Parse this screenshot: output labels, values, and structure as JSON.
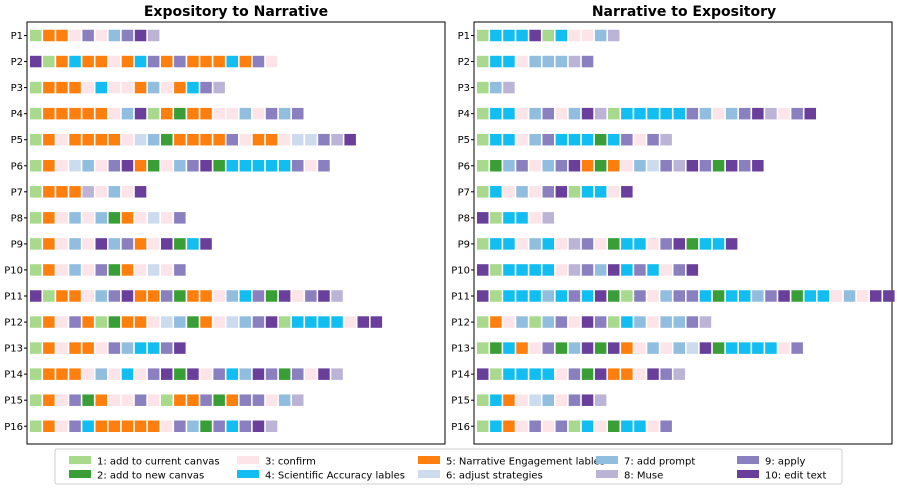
{
  "chart_data": {
    "type": "sequence-grid",
    "colors": {
      "1": "#a8d98c",
      "2": "#3a9e37",
      "3": "#fce4e8",
      "4": "#12bdf2",
      "5": "#ff7f0e",
      "6": "#ccdcee",
      "7": "#91bedf",
      "8": "#bcb4d6",
      "9": "#8a80bf",
      "10": "#6a3f9c"
    },
    "legend": [
      {
        "code": 1,
        "label": "1: add to current canvas"
      },
      {
        "code": 2,
        "label": "2: add to new canvas"
      },
      {
        "code": 3,
        "label": "3: confirm"
      },
      {
        "code": 4,
        "label": "4: Scientific Accuracy lables"
      },
      {
        "code": 5,
        "label": "5: Narrative Engagement lables"
      },
      {
        "code": 6,
        "label": "6: adjust strategies"
      },
      {
        "code": 7,
        "label": "7: add prompt"
      },
      {
        "code": 8,
        "label": "8: Muse"
      },
      {
        "code": 9,
        "label": "9: apply"
      },
      {
        "code": 10,
        "label": "10: edit text"
      }
    ],
    "panels": [
      {
        "title": "Expository to Narrative",
        "rows": [
          {
            "label": "P1",
            "seq": [
              1,
              5,
              5,
              3,
              9,
              3,
              7,
              9,
              10,
              8
            ]
          },
          {
            "label": "P2",
            "seq": [
              10,
              1,
              5,
              4,
              5,
              5,
              3,
              5,
              4,
              9,
              5,
              9,
              5,
              5,
              5,
              4,
              5,
              9,
              3
            ]
          },
          {
            "label": "P3",
            "seq": [
              1,
              5,
              5,
              5,
              3,
              4,
              3,
              3,
              5,
              7,
              3,
              5,
              4,
              9,
              8
            ]
          },
          {
            "label": "P4",
            "seq": [
              1,
              5,
              5,
              5,
              5,
              5,
              3,
              7,
              10,
              1,
              5,
              2,
              5,
              5,
              3,
              3,
              7,
              3,
              9,
              7,
              9
            ]
          },
          {
            "label": "P5",
            "seq": [
              1,
              5,
              3,
              5,
              5,
              5,
              5,
              3,
              6,
              7,
              2,
              5,
              5,
              5,
              5,
              9,
              3,
              5,
              5,
              3,
              6,
              6,
              9,
              8,
              10
            ]
          },
          {
            "label": "P6",
            "seq": [
              1,
              5,
              3,
              6,
              7,
              3,
              9,
              10,
              5,
              2,
              3,
              7,
              9,
              10,
              2,
              4,
              4,
              4,
              4,
              4,
              9,
              3,
              9
            ]
          },
          {
            "label": "P7",
            "seq": [
              1,
              5,
              5,
              5,
              8,
              3,
              7,
              3,
              10
            ]
          },
          {
            "label": "P8",
            "seq": [
              1,
              5,
              3,
              7,
              3,
              7,
              2,
              5,
              3,
              6,
              3,
              9
            ]
          },
          {
            "label": "P9",
            "seq": [
              1,
              5,
              3,
              7,
              3,
              10,
              7,
              9,
              5,
              3,
              10,
              2,
              4,
              10
            ]
          },
          {
            "label": "P10",
            "seq": [
              1,
              5,
              3,
              7,
              3,
              9,
              2,
              5,
              3,
              6,
              3,
              9
            ]
          },
          {
            "label": "P11",
            "seq": [
              10,
              1,
              5,
              5,
              3,
              7,
              9,
              10,
              5,
              5,
              9,
              2,
              5,
              5,
              3,
              7,
              4,
              9,
              2,
              10,
              3,
              9,
              10,
              8
            ]
          },
          {
            "label": "P12",
            "seq": [
              1,
              5,
              3,
              9,
              5,
              1,
              2,
              5,
              5,
              3,
              6,
              7,
              2,
              5,
              3,
              6,
              7,
              9,
              10,
              1,
              4,
              4,
              4,
              4,
              3,
              10,
              10
            ]
          },
          {
            "label": "P13",
            "seq": [
              1,
              5,
              3,
              5,
              5,
              3,
              9,
              7,
              4,
              4,
              9,
              10
            ]
          },
          {
            "label": "P14",
            "seq": [
              1,
              5,
              5,
              5,
              3,
              7,
              3,
              4,
              3,
              9,
              10,
              2,
              10,
              3,
              9,
              4,
              7,
              10,
              9,
              2,
              9,
              3,
              10,
              8
            ]
          },
          {
            "label": "P15",
            "seq": [
              1,
              5,
              3,
              9,
              2,
              5,
              3,
              3,
              9,
              3,
              1,
              5,
              5,
              9,
              2,
              5,
              9,
              9,
              3,
              7,
              8
            ]
          },
          {
            "label": "P16",
            "seq": [
              1,
              5,
              3,
              9,
              4,
              5,
              5,
              5,
              5,
              5,
              3,
              9,
              7,
              2,
              9,
              4,
              9,
              10,
              8
            ]
          }
        ]
      },
      {
        "title": "Narrative to Expository",
        "rows": [
          {
            "label": "P1",
            "seq": [
              1,
              4,
              4,
              4,
              10,
              1,
              4,
              3,
              3,
              7,
              8
            ]
          },
          {
            "label": "P2",
            "seq": [
              1,
              4,
              4,
              3,
              7,
              7,
              7,
              8,
              9
            ]
          },
          {
            "label": "P3",
            "seq": [
              1,
              7,
              8
            ]
          },
          {
            "label": "P4",
            "seq": [
              1,
              4,
              4,
              3,
              7,
              9,
              3,
              7,
              10,
              8,
              1,
              4,
              4,
              4,
              4,
              4,
              9,
              7,
              3,
              7,
              9,
              10,
              8,
              3,
              9,
              10
            ]
          },
          {
            "label": "P5",
            "seq": [
              1,
              4,
              4,
              3,
              7,
              9,
              4,
              4,
              4,
              2,
              4,
              9,
              3,
              9,
              8
            ]
          },
          {
            "label": "P6",
            "seq": [
              1,
              2,
              7,
              9,
              3,
              7,
              9,
              10,
              5,
              2,
              5,
              3,
              7,
              6,
              9,
              8,
              10,
              9,
              2,
              10,
              9,
              10
            ]
          },
          {
            "label": "P7",
            "seq": [
              1,
              4,
              3,
              7,
              3,
              9,
              10,
              1,
              4,
              4,
              3,
              10
            ]
          },
          {
            "label": "P8",
            "seq": [
              10,
              1,
              4,
              4,
              3,
              8
            ]
          },
          {
            "label": "P9",
            "seq": [
              1,
              4,
              4,
              3,
              7,
              4,
              3,
              8,
              9,
              3,
              2,
              4,
              4,
              3,
              9,
              10,
              2,
              4,
              4,
              10
            ]
          },
          {
            "label": "P10",
            "seq": [
              10,
              1,
              4,
              4,
              4,
              4,
              3,
              8,
              9,
              7,
              10,
              4,
              9,
              4,
              3,
              9,
              10
            ]
          },
          {
            "label": "P11",
            "seq": [
              10,
              1,
              4,
              4,
              4,
              7,
              4,
              9,
              4,
              10,
              2,
              1,
              9,
              3,
              7,
              9,
              9,
              4,
              2,
              4,
              4,
              7,
              9,
              10,
              2,
              4,
              4,
              3,
              7,
              3,
              10,
              10
            ]
          },
          {
            "label": "P12",
            "seq": [
              1,
              5,
              3,
              7,
              1,
              7,
              9,
              3,
              10,
              9,
              1,
              4,
              7,
              3,
              7,
              7,
              9,
              8
            ]
          },
          {
            "label": "P13",
            "seq": [
              1,
              2,
              4,
              5,
              3,
              9,
              2,
              7,
              10,
              2,
              10,
              5,
              3,
              7,
              3,
              7,
              6,
              10,
              2,
              4,
              4,
              4,
              4,
              3,
              9
            ]
          },
          {
            "label": "P14",
            "seq": [
              10,
              1,
              4,
              4,
              4,
              4,
              3,
              9,
              2,
              10,
              5,
              5,
              3,
              10,
              9,
              8
            ]
          },
          {
            "label": "P15",
            "seq": [
              1,
              4,
              5,
              3,
              6,
              7,
              3,
              9,
              10,
              8
            ]
          },
          {
            "label": "P16",
            "seq": [
              1,
              4,
              5,
              3,
              9,
              3,
              9,
              1,
              4,
              3,
              2,
              4,
              4,
              3,
              9
            ]
          }
        ]
      }
    ]
  }
}
